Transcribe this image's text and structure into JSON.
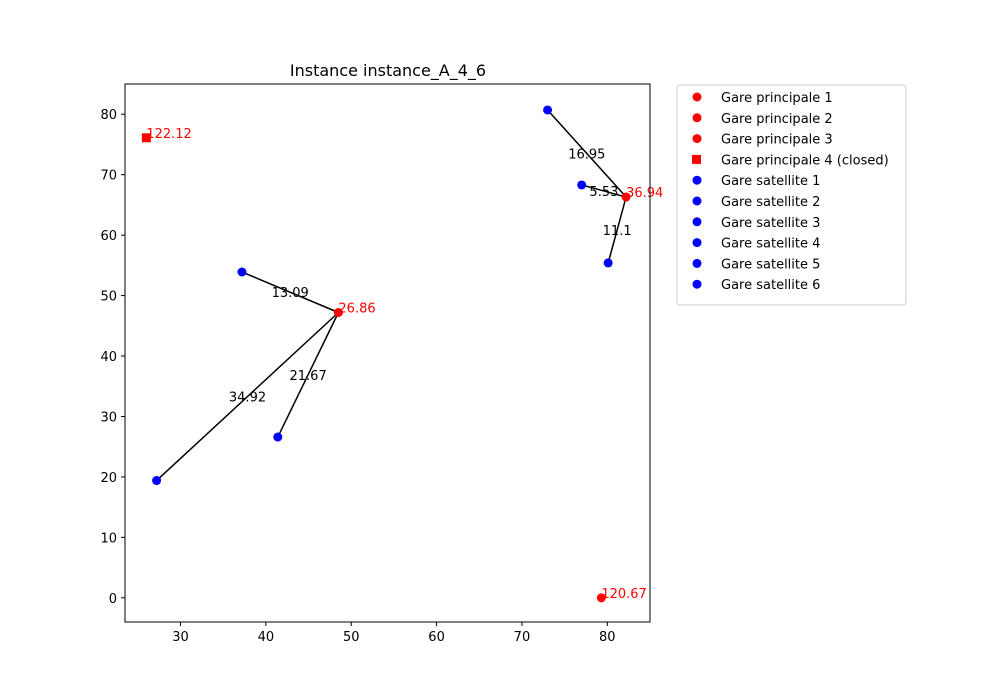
{
  "chart_data": {
    "type": "scatter",
    "title": "Instance instance_A_4_6",
    "xlabel": "",
    "ylabel": "",
    "xlim": [
      23.5,
      85
    ],
    "ylim": [
      -4,
      85
    ],
    "xticks": [
      30,
      40,
      50,
      60,
      70,
      80
    ],
    "yticks": [
      0,
      10,
      20,
      30,
      40,
      50,
      60,
      70,
      80
    ],
    "grid": false,
    "legend_position": "outside-top-right",
    "colors": {
      "main": "#ff0000",
      "satellite": "#0000ff",
      "link": "#000000"
    },
    "main_stations": [
      {
        "name": "Gare principale 1",
        "x": 48.5,
        "y": 47.2,
        "marker": "circle",
        "label": "26.86"
      },
      {
        "name": "Gare principale 2",
        "x": 82.2,
        "y": 66.3,
        "marker": "circle",
        "label": "36.94"
      },
      {
        "name": "Gare principale 3",
        "x": 79.3,
        "y": 0.0,
        "marker": "circle",
        "label": "120.67"
      },
      {
        "name": "Gare principale 4 (closed)",
        "x": 26.0,
        "y": 76.1,
        "marker": "square",
        "label": "122.12"
      }
    ],
    "satellites": [
      {
        "name": "Gare satellite 1",
        "x": 27.2,
        "y": 19.4
      },
      {
        "name": "Gare satellite 2",
        "x": 41.4,
        "y": 26.6
      },
      {
        "name": "Gare satellite 3",
        "x": 37.2,
        "y": 53.9
      },
      {
        "name": "Gare satellite 4",
        "x": 77.0,
        "y": 68.3
      },
      {
        "name": "Gare satellite 5",
        "x": 80.1,
        "y": 55.4
      },
      {
        "name": "Gare satellite 6",
        "x": 73.0,
        "y": 80.7
      }
    ],
    "links": [
      {
        "main": 0,
        "satellite": 2,
        "label": "13.09"
      },
      {
        "main": 0,
        "satellite": 1,
        "label": "21.67"
      },
      {
        "main": 0,
        "satellite": 0,
        "label": "34.92"
      },
      {
        "main": 1,
        "satellite": 5,
        "label": "16.95"
      },
      {
        "main": 1,
        "satellite": 3,
        "label": "5.53"
      },
      {
        "main": 1,
        "satellite": 4,
        "label": "11.1"
      }
    ]
  }
}
